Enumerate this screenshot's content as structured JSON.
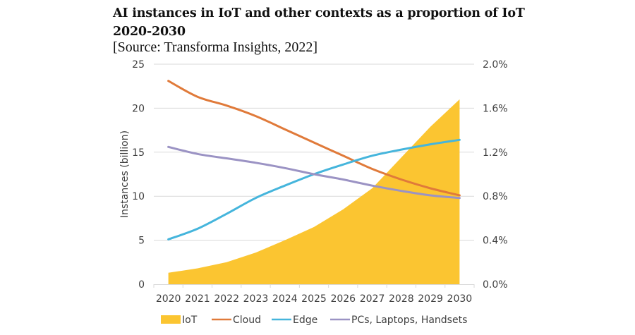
{
  "header": {
    "title_line1": "AI instances in IoT and other contexts as a proportion of IoT",
    "title_line2": "2020-2030",
    "source": "[Source: Transforma Insights, 2022]"
  },
  "chart_data": {
    "type": "line",
    "title": "AI instances in IoT and other contexts as a proportion of IoT 2020-2030",
    "subtitle": "[Source: Transforma Insights, 2022]",
    "xlabel": "",
    "ylabel": "Instances (billion)",
    "y2label": "",
    "categories": [
      "2020",
      "2021",
      "2022",
      "2023",
      "2024",
      "2025",
      "2026",
      "2027",
      "2028",
      "2029",
      "2030"
    ],
    "ylim": [
      0,
      25
    ],
    "yticks": [
      0,
      5,
      10,
      15,
      20,
      25
    ],
    "y2lim": [
      0,
      2.0
    ],
    "y2ticks": [
      "0.0%",
      "0.4%",
      "0.8%",
      "1.2%",
      "1.6%",
      "2.0%"
    ],
    "grid": true,
    "legend_position": "bottom",
    "series": [
      {
        "name": "IoT",
        "type": "area",
        "axis": "left",
        "color": "#FBC531",
        "values": [
          1.3,
          1.8,
          2.5,
          3.6,
          5.0,
          6.5,
          8.5,
          10.9,
          14.4,
          17.9,
          21.0
        ]
      },
      {
        "name": "Cloud",
        "type": "line",
        "axis": "right",
        "color": "#E07A3A",
        "values": [
          23.1,
          21.3,
          20.3,
          19.1,
          17.6,
          16.1,
          14.6,
          13.1,
          11.9,
          10.9,
          10.1
        ]
      },
      {
        "name": "Edge",
        "type": "line",
        "axis": "right",
        "color": "#45B5DC",
        "values": [
          5.1,
          6.3,
          8.0,
          9.8,
          11.2,
          12.5,
          13.6,
          14.6,
          15.3,
          15.9,
          16.4
        ]
      },
      {
        "name": "PCs, Laptops, Handsets",
        "type": "line",
        "axis": "right",
        "color": "#9B93C4",
        "values": [
          15.6,
          14.8,
          14.3,
          13.8,
          13.2,
          12.5,
          11.9,
          11.2,
          10.6,
          10.1,
          9.8
        ]
      }
    ]
  }
}
